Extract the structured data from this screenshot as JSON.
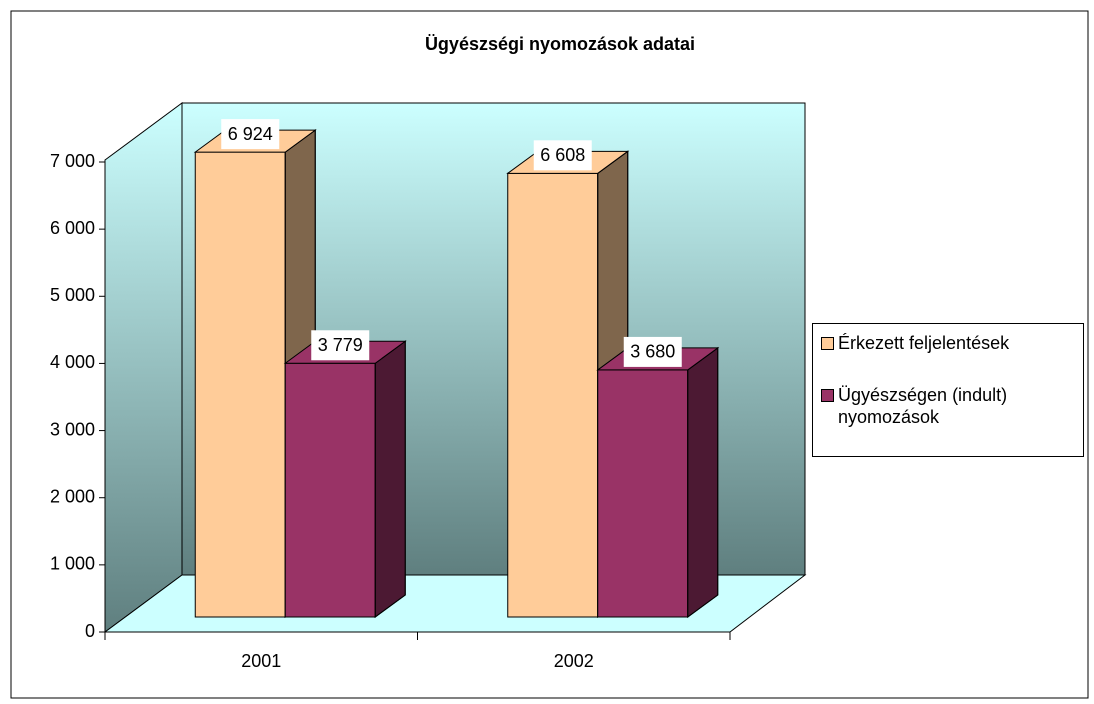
{
  "chart_data": {
    "type": "bar3d",
    "title": "Ügyészségi nyomozások adatai",
    "categories": [
      "2001",
      "2002"
    ],
    "series": [
      {
        "name": "Érkezett feljelentések",
        "color": "#ffcc99",
        "values": [
          6924,
          6608
        ],
        "value_labels": [
          "6 924",
          "6 608"
        ]
      },
      {
        "name": "Ügyészségen (indult) nyomozások",
        "color": "#993366",
        "values": [
          3779,
          3680
        ],
        "value_labels": [
          "3 779",
          "3 680"
        ]
      }
    ],
    "ylim": [
      0,
      7000
    ],
    "yticks": [
      0,
      {
        "value": 1000,
        "label": "1 000"
      },
      {
        "value": 2000,
        "label": "2 000"
      },
      {
        "value": 3000,
        "label": "3 000"
      },
      {
        "value": 4000,
        "label": "4 000"
      },
      {
        "value": 5000,
        "label": "5 000"
      },
      {
        "value": 6000,
        "label": "6 000"
      },
      {
        "value": 7000,
        "label": "7 000"
      }
    ],
    "legend": "right"
  }
}
